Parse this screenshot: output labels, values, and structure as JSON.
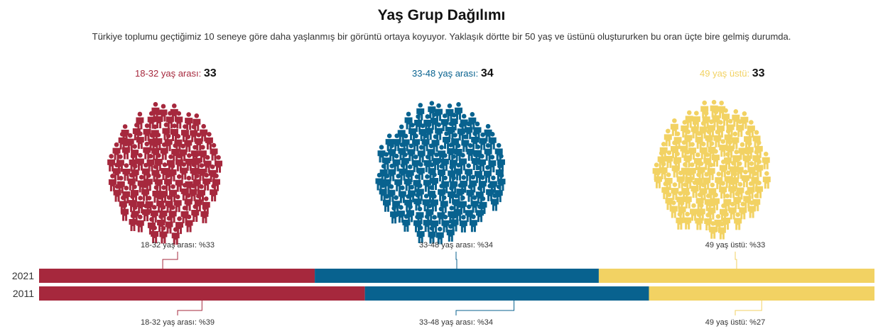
{
  "title": "Yaş Grup Dağılımı",
  "subtitle": "Türkiye toplumu geçtiğimiz 10 seneye göre daha yaşlanmış bir görüntü ortaya koyuyor. Yaklaşık dörtte bir 50 yaş ve üstünü oluştururken bu oran üçte bire gelmiş durumda.",
  "groups": [
    {
      "label": "18-32 yaş arası:",
      "count": "33",
      "color": "#a6283d",
      "icon": "person-icon"
    },
    {
      "label": "33-48 yaş arası:",
      "count": "34",
      "color": "#08628f",
      "icon": "person-icon"
    },
    {
      "label": "49 yaş üstü:",
      "count": "33",
      "color": "#f2d263",
      "icon": "person-icon"
    }
  ],
  "chart_data": {
    "type": "bar",
    "stacked": true,
    "orientation": "horizontal",
    "categories": [
      "2021",
      "2011"
    ],
    "series": [
      {
        "name": "18-32 yaş arası",
        "color": "#a6283d",
        "values": [
          33,
          39
        ],
        "labels": [
          "18-32 yaş arası: %33",
          "18-32 yaş arası: %39"
        ]
      },
      {
        "name": "33-48 yaş arası",
        "color": "#08628f",
        "values": [
          34,
          34
        ],
        "labels": [
          "33-48 yaş arası: %34",
          "33-48 yaş arası: %34"
        ]
      },
      {
        "name": "49 yaş üstü",
        "color": "#f2d263",
        "values": [
          33,
          27
        ],
        "labels": [
          "49 yaş üstü: %33",
          "49 yaş üstü: %27"
        ]
      }
    ],
    "xlim": [
      0,
      100
    ]
  }
}
